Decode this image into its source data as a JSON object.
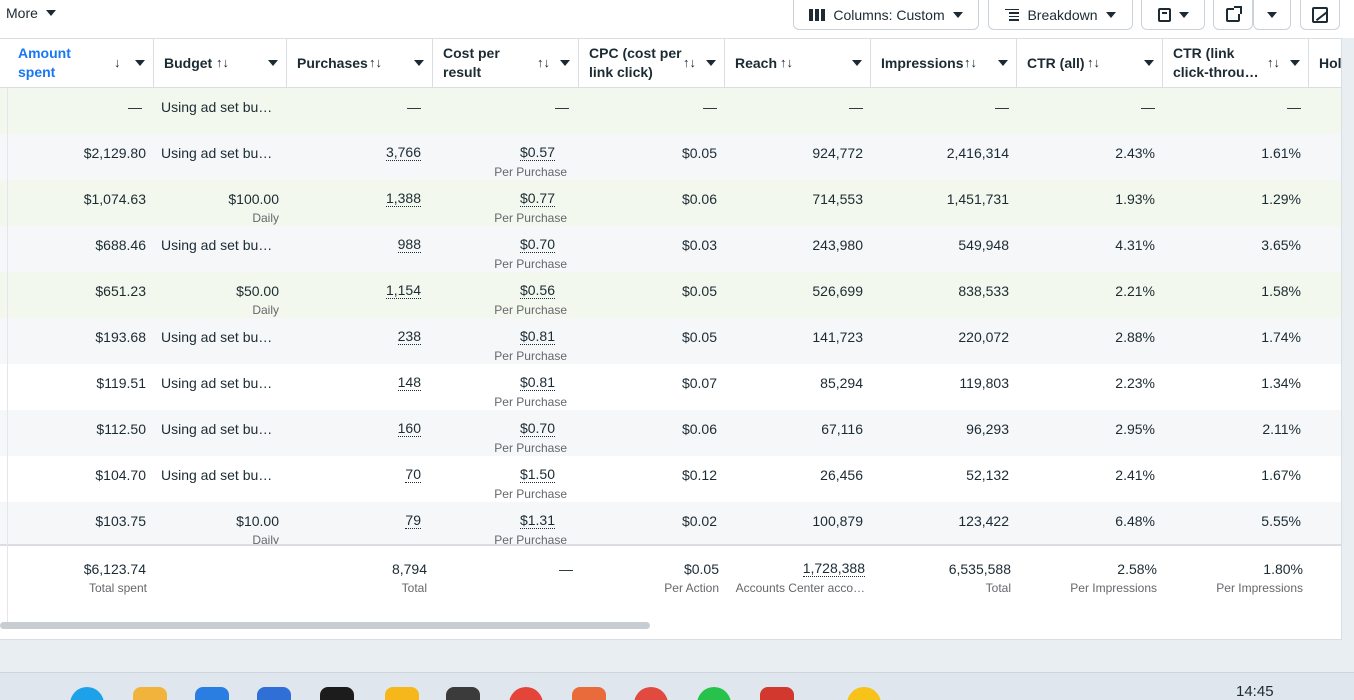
{
  "toolbar": {
    "more_label": "More",
    "columns_label": "Columns: Custom",
    "breakdown_label": "Breakdown"
  },
  "columns": [
    {
      "key": "amount",
      "label": "Amount spent",
      "sort": "↓"
    },
    {
      "key": "budget",
      "label": "Budget",
      "sort": "↑↓"
    },
    {
      "key": "purchases",
      "label": "Purchases",
      "sort": "↑↓"
    },
    {
      "key": "cpr",
      "label": "Cost per result",
      "sort": "↑↓"
    },
    {
      "key": "cpc",
      "label": "CPC (cost per link click)",
      "sort": "↑↓"
    },
    {
      "key": "reach",
      "label": "Reach",
      "sort": "↑↓"
    },
    {
      "key": "impressions",
      "label": "Impressions",
      "sort": "↑↓"
    },
    {
      "key": "ctr_all",
      "label": "CTR (all)",
      "sort": "↑↓"
    },
    {
      "key": "ctr_link",
      "label": "CTR (link click-throu…",
      "sort": "↑↓"
    },
    {
      "key": "hol",
      "label": "Hol",
      "sort": ""
    }
  ],
  "rows": [
    {
      "amount": "—",
      "budget": "Using ad set bu…",
      "budget_sub": "",
      "purchases": "—",
      "cpr": "—",
      "cpr_sub": "",
      "cpc": "—",
      "reach": "—",
      "impressions": "—",
      "ctr_all": "—",
      "ctr_link": "—"
    },
    {
      "amount": "$2,129.80",
      "budget": "Using ad set bu…",
      "budget_sub": "",
      "purchases": "3,766",
      "cpr": "$0.57",
      "cpr_sub": "Per Purchase",
      "cpc": "$0.05",
      "reach": "924,772",
      "impressions": "2,416,314",
      "ctr_all": "2.43%",
      "ctr_link": "1.61%"
    },
    {
      "amount": "$1,074.63",
      "budget": "$100.00",
      "budget_sub": "Daily",
      "purchases": "1,388",
      "cpr": "$0.77",
      "cpr_sub": "Per Purchase",
      "cpc": "$0.06",
      "reach": "714,553",
      "impressions": "1,451,731",
      "ctr_all": "1.93%",
      "ctr_link": "1.29%"
    },
    {
      "amount": "$688.46",
      "budget": "Using ad set bu…",
      "budget_sub": "",
      "purchases": "988",
      "cpr": "$0.70",
      "cpr_sub": "Per Purchase",
      "cpc": "$0.03",
      "reach": "243,980",
      "impressions": "549,948",
      "ctr_all": "4.31%",
      "ctr_link": "3.65%"
    },
    {
      "amount": "$651.23",
      "budget": "$50.00",
      "budget_sub": "Daily",
      "purchases": "1,154",
      "cpr": "$0.56",
      "cpr_sub": "Per Purchase",
      "cpc": "$0.05",
      "reach": "526,699",
      "impressions": "838,533",
      "ctr_all": "2.21%",
      "ctr_link": "1.58%"
    },
    {
      "amount": "$193.68",
      "budget": "Using ad set bu…",
      "budget_sub": "",
      "purchases": "238",
      "cpr": "$0.81",
      "cpr_sub": "Per Purchase",
      "cpc": "$0.05",
      "reach": "141,723",
      "impressions": "220,072",
      "ctr_all": "2.88%",
      "ctr_link": "1.74%"
    },
    {
      "amount": "$119.51",
      "budget": "Using ad set bu…",
      "budget_sub": "",
      "purchases": "148",
      "cpr": "$0.81",
      "cpr_sub": "Per Purchase",
      "cpc": "$0.07",
      "reach": "85,294",
      "impressions": "119,803",
      "ctr_all": "2.23%",
      "ctr_link": "1.34%"
    },
    {
      "amount": "$112.50",
      "budget": "Using ad set bu…",
      "budget_sub": "",
      "purchases": "160",
      "cpr": "$0.70",
      "cpr_sub": "Per Purchase",
      "cpc": "$0.06",
      "reach": "67,116",
      "impressions": "96,293",
      "ctr_all": "2.95%",
      "ctr_link": "2.11%"
    },
    {
      "amount": "$104.70",
      "budget": "Using ad set bu…",
      "budget_sub": "",
      "purchases": "70",
      "cpr": "$1.50",
      "cpr_sub": "Per Purchase",
      "cpc": "$0.12",
      "reach": "26,456",
      "impressions": "52,132",
      "ctr_all": "2.41%",
      "ctr_link": "1.67%"
    },
    {
      "amount": "$103.75",
      "budget": "$10.00",
      "budget_sub": "Daily",
      "purchases": "79",
      "cpr": "$1.31",
      "cpr_sub": "Per Purchase",
      "cpc": "$0.02",
      "reach": "100,879",
      "impressions": "123,422",
      "ctr_all": "6.48%",
      "ctr_link": "5.55%"
    }
  ],
  "totals": {
    "amount": "$6,123.74",
    "amount_sub": "Total spent",
    "purchases": "8,794",
    "purchases_sub": "Total",
    "cpr": "—",
    "cpc": "$0.05",
    "cpc_sub": "Per Action",
    "reach": "1,728,388",
    "reach_sub": "Accounts Center acco…",
    "impressions": "6,535,588",
    "impressions_sub": "Total",
    "ctr_all": "2.58%",
    "ctr_all_sub": "Per Impressions",
    "ctr_link": "1.80%",
    "ctr_link_sub": "Per Impressions"
  },
  "taskbar": {
    "clock": "14:45"
  }
}
